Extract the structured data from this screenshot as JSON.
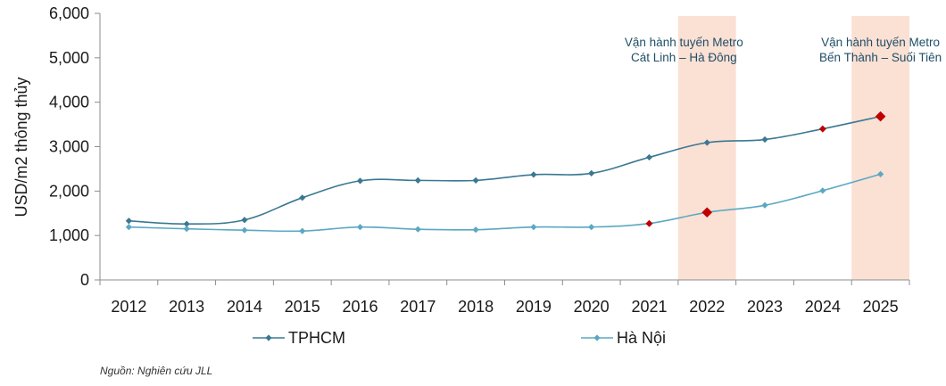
{
  "chart_data": {
    "type": "line",
    "categories": [
      "2012",
      "2013",
      "2014",
      "2015",
      "2016",
      "2017",
      "2018",
      "2019",
      "2020",
      "2021",
      "2022",
      "2023",
      "2024",
      "2025"
    ],
    "ylabel": "USD/m2 thông thủy",
    "ylim": [
      0,
      6000
    ],
    "yticks": [
      0,
      1000,
      2000,
      3000,
      4000,
      5000,
      6000
    ],
    "ytick_labels": [
      "0",
      "1,000",
      "2,000",
      "3,000",
      "4,000",
      "5,000",
      "6,000"
    ],
    "series": [
      {
        "name": "TPHCM",
        "color": "#3a7892",
        "values": [
          1330,
          1260,
          1350,
          1850,
          2230,
          2240,
          2240,
          2370,
          2400,
          2760,
          3090,
          3160,
          3400,
          3680
        ],
        "highlight": [
          null,
          null,
          null,
          null,
          null,
          null,
          null,
          null,
          null,
          null,
          null,
          null,
          "small",
          "large"
        ]
      },
      {
        "name": "Hà Nội",
        "color": "#5ba8c2",
        "values": [
          1190,
          1150,
          1120,
          1100,
          1190,
          1140,
          1130,
          1190,
          1190,
          1270,
          1520,
          1680,
          2010,
          2380
        ],
        "highlight": [
          null,
          null,
          null,
          null,
          null,
          null,
          null,
          null,
          null,
          "small",
          "large",
          null,
          null,
          null
        ]
      }
    ],
    "shaded_bands": [
      {
        "category": "2022",
        "color": "#fbe0d4"
      },
      {
        "category": "2025",
        "color": "#fbe0d4"
      }
    ],
    "annotations": [
      {
        "category": "2021.6",
        "lines": [
          "Vận hành tuyến Metro",
          "Cát Linh – Hà Đông"
        ]
      },
      {
        "category": "2025",
        "lines": [
          "Vận hành tuyến Metro",
          "Bến Thành – Suối Tiên"
        ]
      }
    ],
    "highlight_color": "#c00000",
    "legend_position": "bottom",
    "grid": false
  },
  "source_note": "Nguồn: Nghiên cứu JLL"
}
